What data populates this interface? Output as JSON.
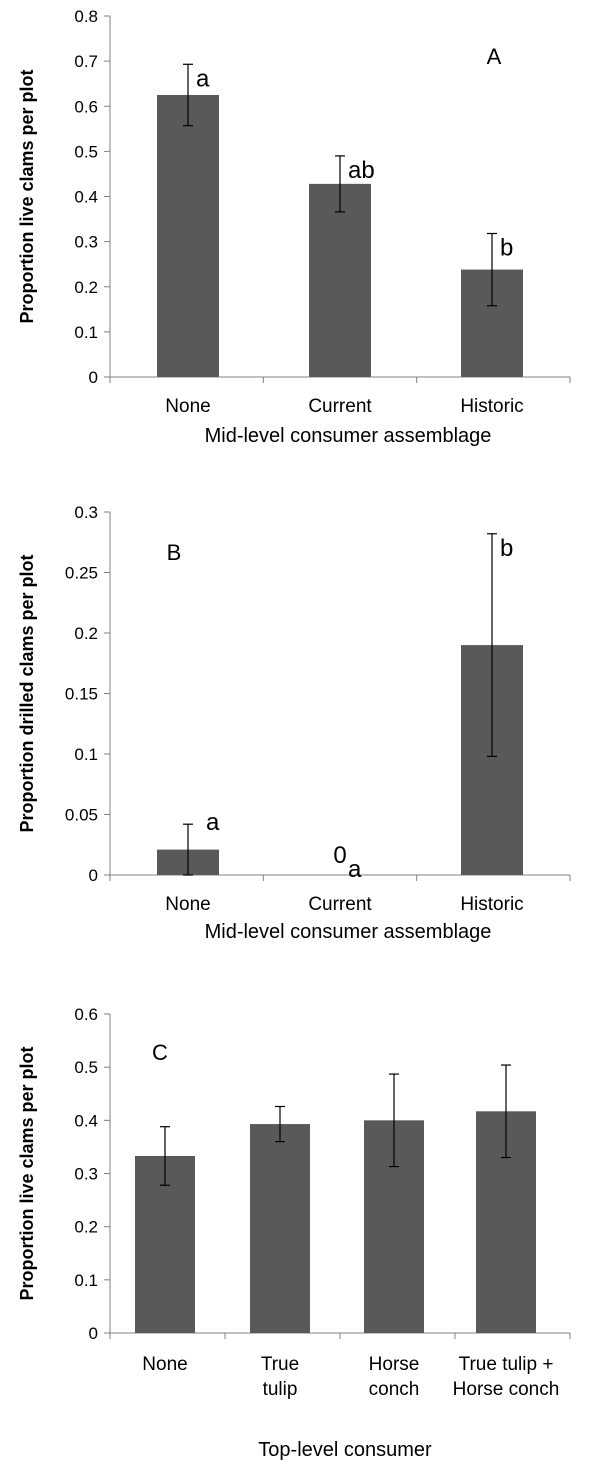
{
  "chart_data": [
    {
      "type": "bar",
      "panel_label": "A",
      "ylabel": "Proportion live clams per plot",
      "xlabel": "Mid-level consumer assemblage",
      "categories": [
        "None",
        "Current",
        "Historic"
      ],
      "values": [
        0.625,
        0.428,
        0.238
      ],
      "errors": [
        0.068,
        0.062,
        0.08
      ],
      "significance": [
        "a",
        "ab",
        "b"
      ],
      "value_labels": [
        "",
        "",
        ""
      ],
      "ylim": [
        0,
        0.8
      ],
      "yticks": [
        0,
        0.1,
        0.2,
        0.3,
        0.4,
        0.5,
        0.6,
        0.7,
        0.8
      ],
      "ytick_labels": [
        "0",
        "0.1",
        "0.2",
        "0.3",
        "0.4",
        "0.5",
        "0.6",
        "0.7",
        "0.8"
      ],
      "bar_color": "#595959"
    },
    {
      "type": "bar",
      "panel_label": "B",
      "ylabel": "Proportion drilled clams per plot",
      "xlabel": "Mid-level consumer assemblage",
      "categories": [
        "None",
        "Current",
        "Historic"
      ],
      "values": [
        0.021,
        0,
        0.19
      ],
      "errors": [
        0.021,
        0,
        0.092
      ],
      "significance": [
        "a",
        "a",
        "b"
      ],
      "value_labels": [
        "",
        "0",
        ""
      ],
      "ylim": [
        0,
        0.3
      ],
      "yticks": [
        0,
        0.05,
        0.1,
        0.15,
        0.2,
        0.25,
        0.3
      ],
      "ytick_labels": [
        "0",
        "0.05",
        "0.1",
        "0.15",
        "0.2",
        "0.25",
        "0.3"
      ],
      "bar_color": "#595959"
    },
    {
      "type": "bar",
      "panel_label": "C",
      "ylabel": "Proportion live clams per plot",
      "xlabel": "Top-level consumer",
      "categories": [
        [
          "None"
        ],
        [
          "True",
          "tulip"
        ],
        [
          "Horse",
          "conch"
        ],
        [
          "True tulip +",
          "Horse conch"
        ]
      ],
      "values": [
        0.333,
        0.393,
        0.4,
        0.417
      ],
      "errors": [
        0.055,
        0.033,
        0.087,
        0.087
      ],
      "significance": [
        "",
        "",
        "",
        ""
      ],
      "value_labels": [
        "",
        "",
        "",
        ""
      ],
      "ylim": [
        0,
        0.6
      ],
      "yticks": [
        0,
        0.1,
        0.2,
        0.3,
        0.4,
        0.5,
        0.6
      ],
      "ytick_labels": [
        "0",
        "0.1",
        "0.2",
        "0.3",
        "0.4",
        "0.5",
        "0.6"
      ],
      "bar_color": "#595959"
    }
  ]
}
